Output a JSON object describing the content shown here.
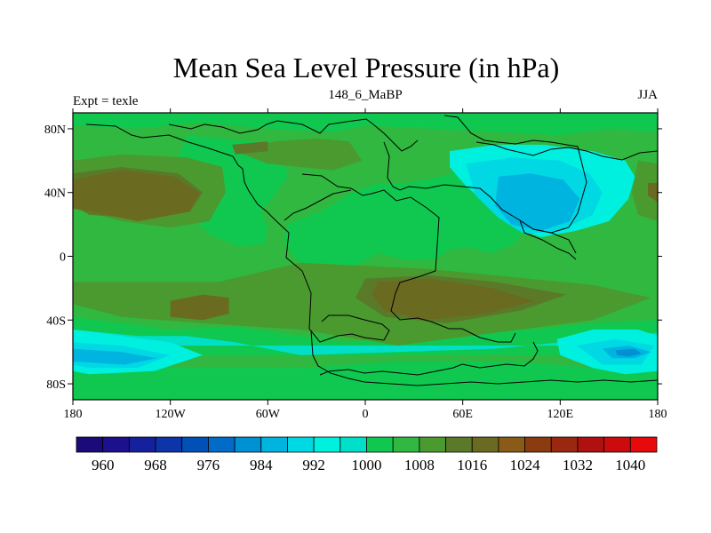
{
  "title": "Mean Sea Level Pressure (in hPa)",
  "left_string": "Expt = texle",
  "center_string": "148_6_MaBP",
  "right_string": "JJA",
  "x_ticks": [
    {
      "value": -180,
      "label": "180"
    },
    {
      "value": -120,
      "label": "120W"
    },
    {
      "value": -60,
      "label": "60W"
    },
    {
      "value": 0,
      "label": "0"
    },
    {
      "value": 60,
      "label": "60E"
    },
    {
      "value": 120,
      "label": "120E"
    },
    {
      "value": 180,
      "label": "180"
    }
  ],
  "y_ticks": [
    {
      "value": 80,
      "label": "80N"
    },
    {
      "value": 40,
      "label": "40N"
    },
    {
      "value": 0,
      "label": "0"
    },
    {
      "value": -40,
      "label": "40S"
    },
    {
      "value": -80,
      "label": "80S"
    }
  ],
  "colorbar": {
    "levels": [
      956,
      960,
      964,
      968,
      972,
      976,
      980,
      984,
      988,
      992,
      996,
      1000,
      1004,
      1008,
      1012,
      1016,
      1020,
      1024,
      1028,
      1032,
      1036,
      1040,
      1044
    ],
    "colors": [
      "#1a0a7a",
      "#1d108c",
      "#15209c",
      "#0d34a8",
      "#0050b8",
      "#006cc8",
      "#0090d4",
      "#00b4e0",
      "#00d8e4",
      "#00f0e0",
      "#00e0c8",
      "#10c850",
      "#30b840",
      "#4a9a30",
      "#5a7a2a",
      "#6a6a20",
      "#8a5a18",
      "#8a3c10",
      "#9a2810",
      "#b01010",
      "#cc0c0c",
      "#e80a0a"
    ],
    "labels": [
      "960",
      "968",
      "976",
      "984",
      "992",
      "1000",
      "1008",
      "1016",
      "1024",
      "1032",
      "1040"
    ]
  },
  "chart_data": {
    "type": "map-contour",
    "title": "Mean Sea Level Pressure (in hPa)",
    "variable": "Mean Sea Level Pressure",
    "units": "hPa",
    "experiment": "texle",
    "period": "148_6_MaBP",
    "season": "JJA",
    "lon_range": [
      -180,
      180
    ],
    "lat_range": [
      -90,
      90
    ],
    "regions": [
      {
        "name": "ocean-background",
        "level": 1004,
        "points": [
          [
            -180,
            90
          ],
          [
            180,
            90
          ],
          [
            180,
            -90
          ],
          [
            -180,
            -90
          ]
        ]
      },
      {
        "name": "north-polar-cap",
        "level": 1000,
        "points": [
          [
            -180,
            90
          ],
          [
            180,
            90
          ],
          [
            180,
            78
          ],
          [
            150,
            80
          ],
          [
            120,
            76
          ],
          [
            80,
            78
          ],
          [
            40,
            80
          ],
          [
            0,
            82
          ],
          [
            -20,
            78
          ],
          [
            -60,
            80
          ],
          [
            -100,
            84
          ],
          [
            -140,
            80
          ],
          [
            -180,
            82
          ]
        ]
      },
      {
        "name": "north-america-low",
        "level": 1000,
        "points": [
          [
            -110,
            76
          ],
          [
            -70,
            72
          ],
          [
            -50,
            62
          ],
          [
            -48,
            50
          ],
          [
            -56,
            38
          ],
          [
            -64,
            28
          ],
          [
            -60,
            18
          ],
          [
            -62,
            8
          ],
          [
            -78,
            6
          ],
          [
            -96,
            14
          ],
          [
            -104,
            22
          ],
          [
            -108,
            34
          ],
          [
            -114,
            46
          ],
          [
            -116,
            60
          ],
          [
            -112,
            70
          ]
        ]
      },
      {
        "name": "south-america-africa-low",
        "level": 1000,
        "points": [
          [
            -48,
            20
          ],
          [
            -28,
            28
          ],
          [
            -8,
            40
          ],
          [
            8,
            46
          ],
          [
            26,
            46
          ],
          [
            46,
            50
          ],
          [
            66,
            56
          ],
          [
            86,
            52
          ],
          [
            98,
            38
          ],
          [
            100,
            20
          ],
          [
            92,
            8
          ],
          [
            78,
            2
          ],
          [
            62,
            6
          ],
          [
            52,
            4
          ],
          [
            42,
            -2
          ],
          [
            24,
            -2
          ],
          [
            8,
            2
          ],
          [
            -6,
            -6
          ],
          [
            -20,
            -14
          ],
          [
            -34,
            -10
          ],
          [
            -44,
            0
          ],
          [
            -50,
            10
          ]
        ]
      },
      {
        "name": "south-ocean-band",
        "level": 1000,
        "points": [
          [
            -180,
            -38
          ],
          [
            -120,
            -46
          ],
          [
            -80,
            -44
          ],
          [
            -40,
            -50
          ],
          [
            -10,
            -54
          ],
          [
            20,
            -50
          ],
          [
            60,
            -46
          ],
          [
            100,
            -46
          ],
          [
            140,
            -42
          ],
          [
            180,
            -40
          ],
          [
            180,
            -62
          ],
          [
            -180,
            -62
          ]
        ]
      },
      {
        "name": "south-ocean-inner",
        "level": 996,
        "points": [
          [
            -180,
            -46
          ],
          [
            -140,
            -50
          ],
          [
            -110,
            -50
          ],
          [
            -80,
            -54
          ],
          [
            -40,
            -62
          ],
          [
            20,
            -60
          ],
          [
            80,
            -58
          ],
          [
            120,
            -54
          ],
          [
            150,
            -50
          ],
          [
            180,
            -48
          ],
          [
            180,
            -56
          ],
          [
            -180,
            -56
          ]
        ]
      },
      {
        "name": "south-polar-band",
        "level": 1000,
        "points": [
          [
            -180,
            -64
          ],
          [
            -120,
            -70
          ],
          [
            -40,
            -70
          ],
          [
            20,
            -66
          ],
          [
            90,
            -66
          ],
          [
            140,
            -70
          ],
          [
            180,
            -66
          ],
          [
            180,
            -90
          ],
          [
            -180,
            -90
          ]
        ]
      },
      {
        "name": "asia-low-outer",
        "level": 992,
        "points": [
          [
            52,
            66
          ],
          [
            80,
            70
          ],
          [
            110,
            70
          ],
          [
            140,
            66
          ],
          [
            160,
            60
          ],
          [
            166,
            50
          ],
          [
            162,
            36
          ],
          [
            150,
            22
          ],
          [
            130,
            16
          ],
          [
            108,
            12
          ],
          [
            92,
            18
          ],
          [
            78,
            30
          ],
          [
            62,
            44
          ],
          [
            52,
            56
          ]
        ]
      },
      {
        "name": "asia-low-mid",
        "level": 988,
        "points": [
          [
            62,
            58
          ],
          [
            90,
            62
          ],
          [
            120,
            60
          ],
          [
            138,
            52
          ],
          [
            146,
            40
          ],
          [
            140,
            26
          ],
          [
            120,
            16
          ],
          [
            98,
            14
          ],
          [
            82,
            24
          ],
          [
            68,
            38
          ]
        ]
      },
      {
        "name": "asia-low-core",
        "level": 984,
        "points": [
          [
            82,
            50
          ],
          [
            102,
            52
          ],
          [
            122,
            48
          ],
          [
            132,
            36
          ],
          [
            126,
            22
          ],
          [
            108,
            16
          ],
          [
            90,
            20
          ],
          [
            80,
            32
          ]
        ]
      },
      {
        "name": "southern-low-outer",
        "level": 992,
        "points": [
          [
            -180,
            -46
          ],
          [
            -150,
            -50
          ],
          [
            -120,
            -54
          ],
          [
            -100,
            -62
          ],
          [
            -130,
            -72
          ],
          [
            -170,
            -74
          ],
          [
            -180,
            -72
          ]
        ]
      },
      {
        "name": "southern-low-mid",
        "level": 988,
        "points": [
          [
            -180,
            -54
          ],
          [
            -150,
            -56
          ],
          [
            -120,
            -62
          ],
          [
            -140,
            -70
          ],
          [
            -170,
            -70
          ],
          [
            -180,
            -68
          ]
        ]
      },
      {
        "name": "southern-low-core",
        "level": 984,
        "points": [
          [
            -180,
            -58
          ],
          [
            -150,
            -60
          ],
          [
            -128,
            -64
          ],
          [
            -148,
            -68
          ],
          [
            -180,
            -66
          ]
        ]
      },
      {
        "name": "east-southern-low-outer",
        "level": 992,
        "points": [
          [
            118,
            -52
          ],
          [
            140,
            -46
          ],
          [
            168,
            -46
          ],
          [
            180,
            -50
          ],
          [
            180,
            -72
          ],
          [
            160,
            -74
          ],
          [
            140,
            -70
          ],
          [
            120,
            -62
          ]
        ]
      },
      {
        "name": "east-southern-low-mid",
        "level": 988,
        "points": [
          [
            130,
            -56
          ],
          [
            154,
            -52
          ],
          [
            178,
            -56
          ],
          [
            170,
            -68
          ],
          [
            146,
            -68
          ]
        ]
      },
      {
        "name": "east-southern-low-core",
        "level": 984,
        "points": [
          [
            146,
            -58
          ],
          [
            162,
            -56
          ],
          [
            176,
            -60
          ],
          [
            166,
            -64
          ],
          [
            152,
            -64
          ]
        ]
      },
      {
        "name": "east-southern-low-eye",
        "level": 980,
        "points": [
          [
            154,
            -59
          ],
          [
            166,
            -58
          ],
          [
            170,
            -61
          ],
          [
            162,
            -63
          ],
          [
            155,
            -62
          ]
        ]
      },
      {
        "name": "north-pacific-high",
        "level": 1008,
        "points": [
          [
            -180,
            60
          ],
          [
            -150,
            64
          ],
          [
            -110,
            62
          ],
          [
            -88,
            56
          ],
          [
            -86,
            40
          ],
          [
            -96,
            22
          ],
          [
            -120,
            18
          ],
          [
            -150,
            22
          ],
          [
            -180,
            30
          ]
        ]
      },
      {
        "name": "north-pacific-high-core",
        "level": 1012,
        "points": [
          [
            -180,
            52
          ],
          [
            -150,
            56
          ],
          [
            -115,
            52
          ],
          [
            -100,
            40
          ],
          [
            -108,
            28
          ],
          [
            -140,
            24
          ],
          [
            -170,
            26
          ],
          [
            -180,
            32
          ]
        ]
      },
      {
        "name": "north-pacific-high-peak",
        "level": 1016,
        "points": [
          [
            -180,
            48
          ],
          [
            -150,
            54
          ],
          [
            -118,
            50
          ],
          [
            -102,
            40
          ],
          [
            -108,
            28
          ],
          [
            -140,
            22
          ],
          [
            -168,
            28
          ],
          [
            -180,
            30
          ]
        ]
      },
      {
        "name": "east-north-high",
        "level": 1008,
        "points": [
          [
            168,
            60
          ],
          [
            180,
            58
          ],
          [
            180,
            22
          ],
          [
            168,
            26
          ],
          [
            164,
            40
          ]
        ]
      },
      {
        "name": "east-north-high-core",
        "level": 1016,
        "points": [
          [
            174,
            46
          ],
          [
            180,
            46
          ],
          [
            180,
            34
          ],
          [
            174,
            38
          ]
        ]
      },
      {
        "name": "north-atlantic-high",
        "level": 1008,
        "points": [
          [
            -80,
            66
          ],
          [
            -56,
            72
          ],
          [
            -30,
            74
          ],
          [
            -10,
            72
          ],
          [
            -2,
            60
          ],
          [
            -20,
            54
          ],
          [
            -40,
            56
          ],
          [
            -60,
            58
          ]
        ]
      },
      {
        "name": "north-atlantic-high-core",
        "level": 1012,
        "points": [
          [
            -82,
            70
          ],
          [
            -60,
            72
          ],
          [
            -60,
            66
          ],
          [
            -80,
            64
          ]
        ]
      },
      {
        "name": "tropical-high",
        "level": 1008,
        "points": [
          [
            -90,
            -16
          ],
          [
            -40,
            -4
          ],
          [
            0,
            -6
          ],
          [
            40,
            -8
          ],
          [
            80,
            -12
          ],
          [
            140,
            -18
          ],
          [
            176,
            -26
          ],
          [
            140,
            -40
          ],
          [
            80,
            -48
          ],
          [
            20,
            -56
          ],
          [
            -40,
            -46
          ],
          [
            -100,
            -42
          ],
          [
            -150,
            -38
          ],
          [
            -180,
            -30
          ],
          [
            -180,
            -16
          ],
          [
            -140,
            -16
          ]
        ]
      },
      {
        "name": "southern-subtropical-high",
        "level": 1012,
        "points": [
          [
            0,
            -14
          ],
          [
            40,
            -12
          ],
          [
            80,
            -16
          ],
          [
            124,
            -24
          ],
          [
            96,
            -34
          ],
          [
            50,
            -42
          ],
          [
            12,
            -38
          ],
          [
            -6,
            -26
          ]
        ]
      },
      {
        "name": "southern-subtropical-high-core",
        "level": 1016,
        "points": [
          [
            8,
            -16
          ],
          [
            40,
            -14
          ],
          [
            78,
            -20
          ],
          [
            104,
            -28
          ],
          [
            74,
            -36
          ],
          [
            36,
            -40
          ],
          [
            12,
            -34
          ],
          [
            4,
            -24
          ]
        ]
      },
      {
        "name": "south-pacific-high",
        "level": 1016,
        "points": [
          [
            -120,
            -28
          ],
          [
            -100,
            -24
          ],
          [
            -84,
            -26
          ],
          [
            -84,
            -36
          ],
          [
            -100,
            -40
          ],
          [
            -120,
            -38
          ]
        ]
      }
    ],
    "contour_labels": [
      "960",
      "968",
      "976",
      "984",
      "992",
      "1000",
      "1008",
      "1016",
      "1024",
      "1032",
      "1040"
    ]
  }
}
